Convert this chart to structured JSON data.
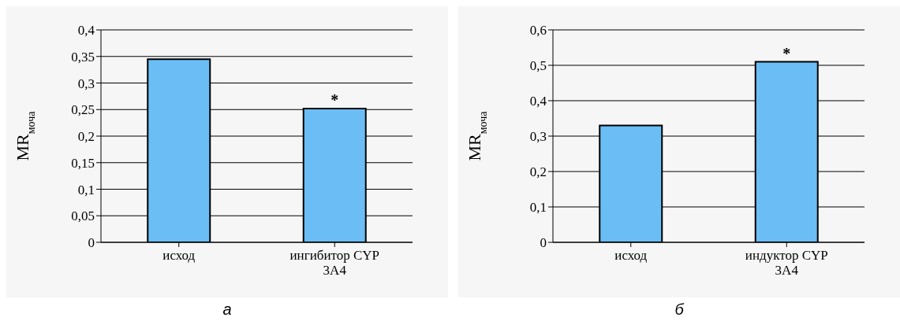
{
  "chart_data": [
    {
      "type": "bar",
      "ylabel": "MR$_{моча}$",
      "categories": [
        "исход",
        "ингибитор CYP 3A4"
      ],
      "values": [
        0.345,
        0.252
      ],
      "color": "#6bbdf5",
      "ylim": [
        0,
        0.4
      ],
      "yticks": [
        0,
        {
          "value": 0.05,
          "label": "0,05"
        },
        {
          "value": 0.1,
          "label": "0,1"
        },
        {
          "value": 0.15,
          "label": "0,15"
        },
        {
          "value": 0.2,
          "label": "0,2"
        },
        {
          "value": 0.25,
          "label": "0,25"
        },
        {
          "value": 0.3,
          "label": "0,3"
        },
        {
          "value": 0.35,
          "label": "0,35"
        },
        {
          "value": 0.4,
          "label": "0,4"
        }
      ],
      "grid": "y",
      "legend": false,
      "annotations": [
        {
          "text": "*",
          "x": "ингибитор CYP 3A4",
          "y": 0.252
        },
        "а"
      ]
    },
    {
      "type": "bar",
      "ylabel": "MR$_{моча}$",
      "categories": [
        "исход",
        "индуктор CYP 3A4"
      ],
      "values": [
        0.33,
        0.51
      ],
      "color": "#6bbdf5",
      "ylim": [
        0,
        0.6
      ],
      "yticks": [
        0,
        {
          "value": 0.1,
          "label": "0,1"
        },
        {
          "value": 0.2,
          "label": "0,2"
        },
        {
          "value": 0.3,
          "label": "0,3"
        },
        {
          "value": 0.4,
          "label": "0,4"
        },
        {
          "value": 0.5,
          "label": "0,5"
        },
        {
          "value": 0.6,
          "label": "0,6"
        }
      ],
      "grid": "y",
      "legend": false,
      "annotations": [
        {
          "text": "*",
          "x": "индуктор CYP 3A4",
          "y": 0.51
        },
        "б"
      ]
    }
  ]
}
